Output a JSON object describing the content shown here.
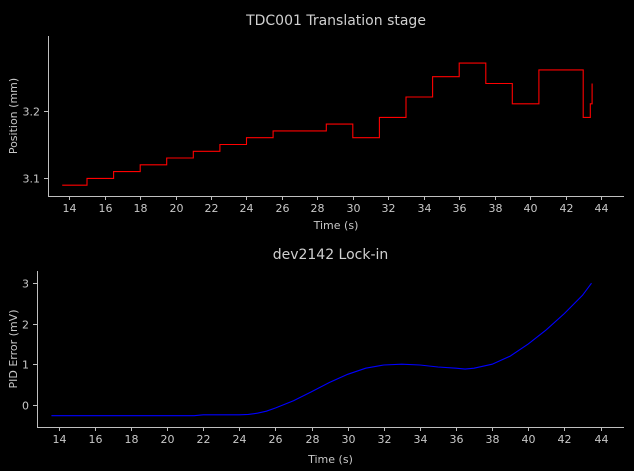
{
  "chart_data": [
    {
      "type": "line",
      "title": "TDC001 Translation stage",
      "xlabel": "Time (s)",
      "ylabel": "Position (mm)",
      "xlim": [
        12.8,
        45.3
      ],
      "ylim": [
        3.074,
        3.31
      ],
      "xticks": [
        14,
        16,
        18,
        20,
        22,
        24,
        26,
        28,
        30,
        32,
        34,
        36,
        38,
        40,
        42,
        44
      ],
      "yticks": [
        3.1,
        3.2
      ],
      "grid": false,
      "series": [
        {
          "color": "#ff0000",
          "step": true,
          "x": [
            13.6,
            15.0,
            16.5,
            18.0,
            19.5,
            21.0,
            22.5,
            24.0,
            25.5,
            27.0,
            28.5,
            30.0,
            31.5,
            33.0,
            34.5,
            36.0,
            37.5,
            39.0,
            40.5,
            41.5,
            43.0,
            43.4,
            43.4,
            43.5
          ],
          "y": [
            3.09,
            3.1,
            3.11,
            3.12,
            3.13,
            3.14,
            3.15,
            3.16,
            3.17,
            3.17,
            3.18,
            3.16,
            3.19,
            3.22,
            3.25,
            3.27,
            3.24,
            3.21,
            3.26,
            3.26,
            3.19,
            3.19,
            3.21,
            3.24
          ]
        }
      ]
    },
    {
      "type": "line",
      "title": "dev2142 Lock-in",
      "xlabel": "Time (s)",
      "ylabel": "PID Error (mV)",
      "xlim": [
        12.8,
        45.3
      ],
      "ylim": [
        -0.55,
        3.3
      ],
      "xticks": [
        14,
        16,
        18,
        20,
        22,
        24,
        26,
        28,
        30,
        32,
        34,
        36,
        38,
        40,
        42,
        44
      ],
      "yticks": [
        0,
        1,
        2,
        3
      ],
      "grid": false,
      "series": [
        {
          "color": "#0000ff",
          "step": false,
          "x": [
            13.6,
            16,
            18,
            20,
            21.5,
            22,
            23,
            24,
            24.5,
            25,
            25.5,
            26,
            27,
            28,
            29,
            30,
            31,
            32,
            33,
            34,
            35,
            36,
            36.5,
            37,
            38,
            39,
            40,
            41,
            42,
            43,
            43.5
          ],
          "y": [
            -0.27,
            -0.27,
            -0.27,
            -0.27,
            -0.27,
            -0.25,
            -0.25,
            -0.25,
            -0.24,
            -0.21,
            -0.16,
            -0.08,
            0.1,
            0.32,
            0.55,
            0.75,
            0.9,
            0.98,
            1.0,
            0.98,
            0.93,
            0.9,
            0.88,
            0.9,
            1.0,
            1.2,
            1.5,
            1.85,
            2.25,
            2.7,
            3.0
          ]
        }
      ]
    }
  ]
}
